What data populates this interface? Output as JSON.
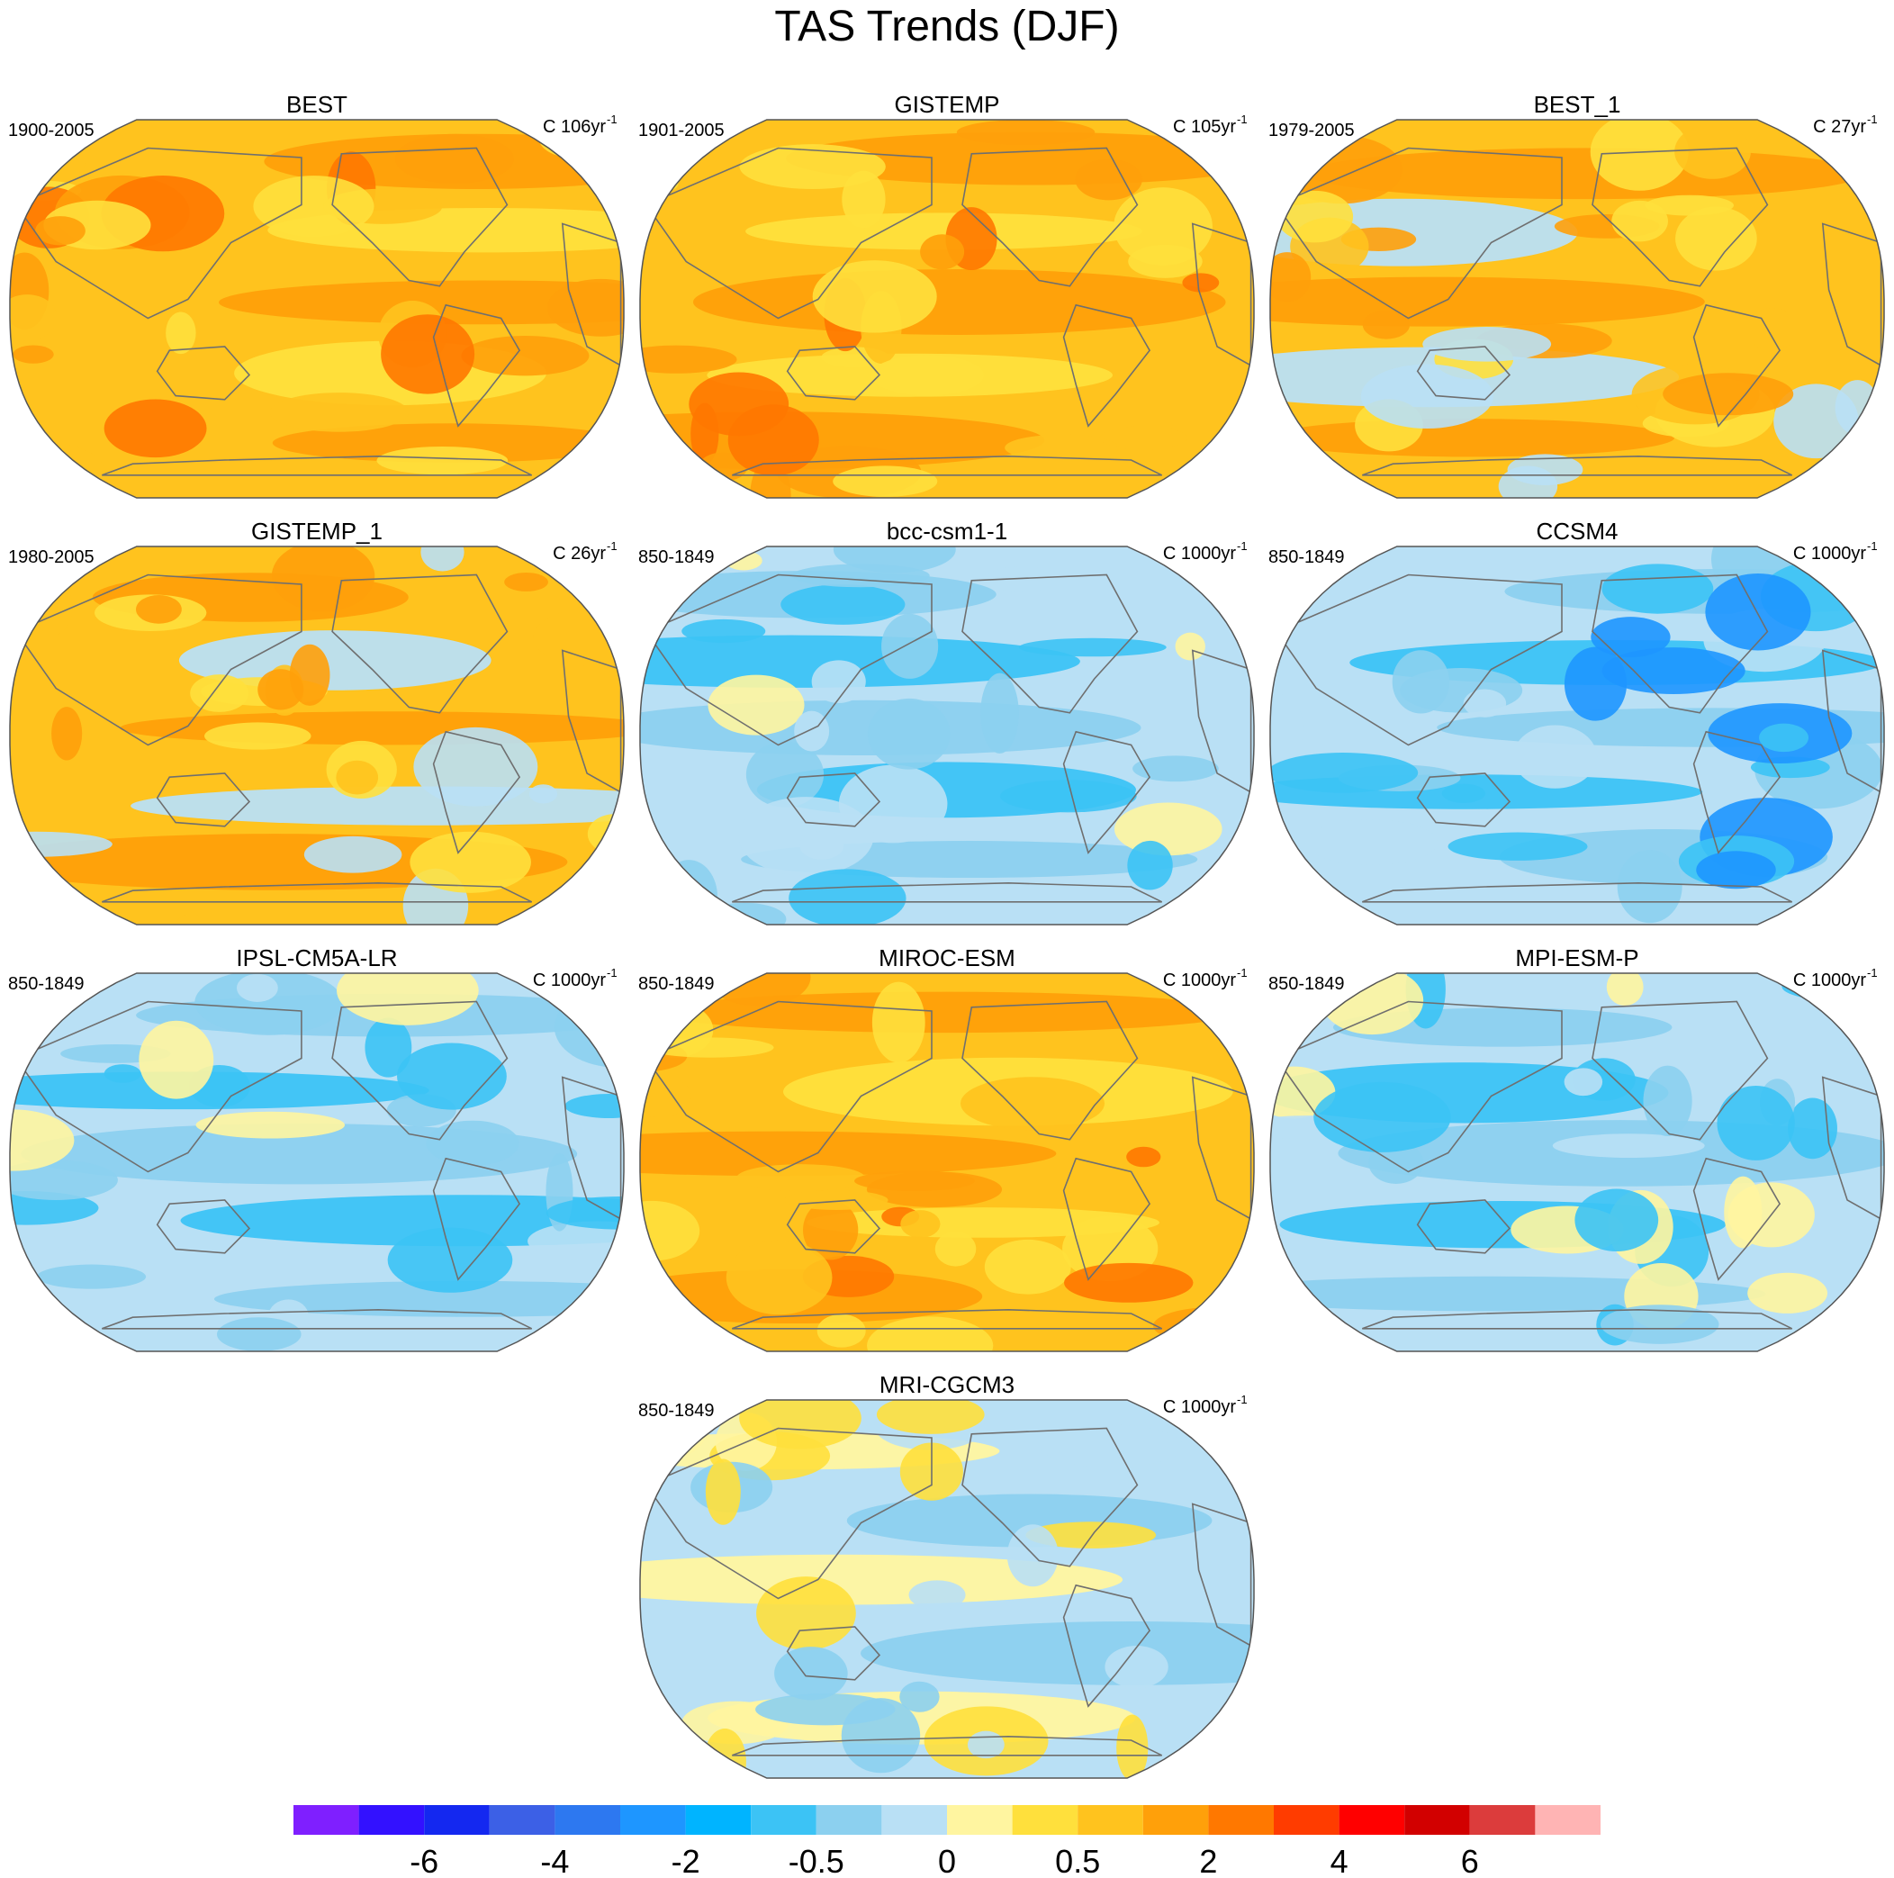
{
  "title": "TAS Trends (DJF)",
  "chart_data": {
    "type": "heatmap",
    "projection": "Robinson",
    "central_longitude": 180,
    "title": "TAS Trends (DJF)",
    "colorbar": {
      "colors": [
        "#7f1fff",
        "#3311ff",
        "#1428f0",
        "#3c60e6",
        "#2d78f0",
        "#1e96ff",
        "#00b4ff",
        "#3cc3f5",
        "#8cd0ef",
        "#b9e0f5",
        "#fff5a0",
        "#ffe03c",
        "#ffc31e",
        "#ffa00a",
        "#ff7800",
        "#ff3c00",
        "#ff0000",
        "#d20000",
        "#dc3c3c",
        "#ffb4b4"
      ],
      "tick_labels": [
        "-6",
        "-4",
        "-2",
        "-0.5",
        "0",
        "0.5",
        "2",
        "4",
        "6"
      ],
      "tick_boundary_index": [
        2,
        4,
        6,
        8,
        10,
        12,
        14,
        16,
        18
      ]
    },
    "panels": [
      {
        "name": "BEST",
        "period": "1900-2005",
        "units_label": "C 106yr",
        "units_exp": "-1",
        "overall": "warm-strong"
      },
      {
        "name": "GISTEMP",
        "period": "1901-2005",
        "units_label": "C 105yr",
        "units_exp": "-1",
        "overall": "warm-strong"
      },
      {
        "name": "BEST_1",
        "period": "1979-2005",
        "units_label": "C 27yr",
        "units_exp": "-1",
        "overall": "warm-mixed"
      },
      {
        "name": "GISTEMP_1",
        "period": "1980-2005",
        "units_label": "C 26yr",
        "units_exp": "-1",
        "overall": "warm-mixed"
      },
      {
        "name": "bcc-csm1-1",
        "period": "850-1849",
        "units_label": "C 1000yr",
        "units_exp": "-1",
        "overall": "cool"
      },
      {
        "name": "CCSM4",
        "period": "850-1849",
        "units_label": "C 1000yr",
        "units_exp": "-1",
        "overall": "cool-strong"
      },
      {
        "name": "IPSL-CM5A-LR",
        "period": "850-1849",
        "units_label": "C 1000yr",
        "units_exp": "-1",
        "overall": "cool"
      },
      {
        "name": "MIROC-ESM",
        "period": "850-1849",
        "units_label": "C 1000yr",
        "units_exp": "-1",
        "overall": "warm-strong"
      },
      {
        "name": "MPI-ESM-P",
        "period": "850-1849",
        "units_label": "C 1000yr",
        "units_exp": "-1",
        "overall": "cool"
      },
      {
        "name": "MRI-CGCM3",
        "period": "850-1849",
        "units_label": "C 1000yr",
        "units_exp": "-1",
        "overall": "cool-mixed"
      }
    ]
  },
  "palette": {
    "coast": "#6f6f6f",
    "border": "#555555",
    "warm-strong": [
      "#ffc31e",
      "#ffa00a",
      "#ffe03c",
      "#ff7800"
    ],
    "warm-mixed": [
      "#ffc31e",
      "#ffa00a",
      "#b9e0f5",
      "#ffe03c"
    ],
    "cool": [
      "#b9e0f5",
      "#8cd0ef",
      "#3cc3f5",
      "#fff5a0"
    ],
    "cool-strong": [
      "#b9e0f5",
      "#8cd0ef",
      "#3cc3f5",
      "#1e96ff"
    ],
    "cool-mixed": [
      "#b9e0f5",
      "#fff5a0",
      "#8cd0ef",
      "#ffe03c"
    ]
  }
}
